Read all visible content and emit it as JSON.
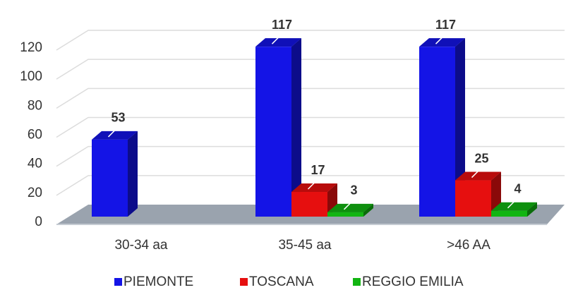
{
  "chart_data": {
    "type": "bar3d",
    "categories": [
      "30-34 aa",
      "35-45 aa",
      ">46 AA"
    ],
    "series": [
      {
        "name": "PIEMONTE",
        "color": "#1414e6",
        "values": [
          53,
          117,
          117
        ]
      },
      {
        "name": "TOSCANA",
        "color": "#e60f0f",
        "values": [
          null,
          17,
          25
        ]
      },
      {
        "name": "REGGIO EMILIA",
        "color": "#12b512",
        "values": [
          null,
          3,
          4
        ]
      }
    ],
    "ylim": [
      0,
      120
    ],
    "yticks": [
      0,
      20,
      40,
      60,
      80,
      100,
      120
    ],
    "grid": true,
    "legend": "bottom"
  }
}
